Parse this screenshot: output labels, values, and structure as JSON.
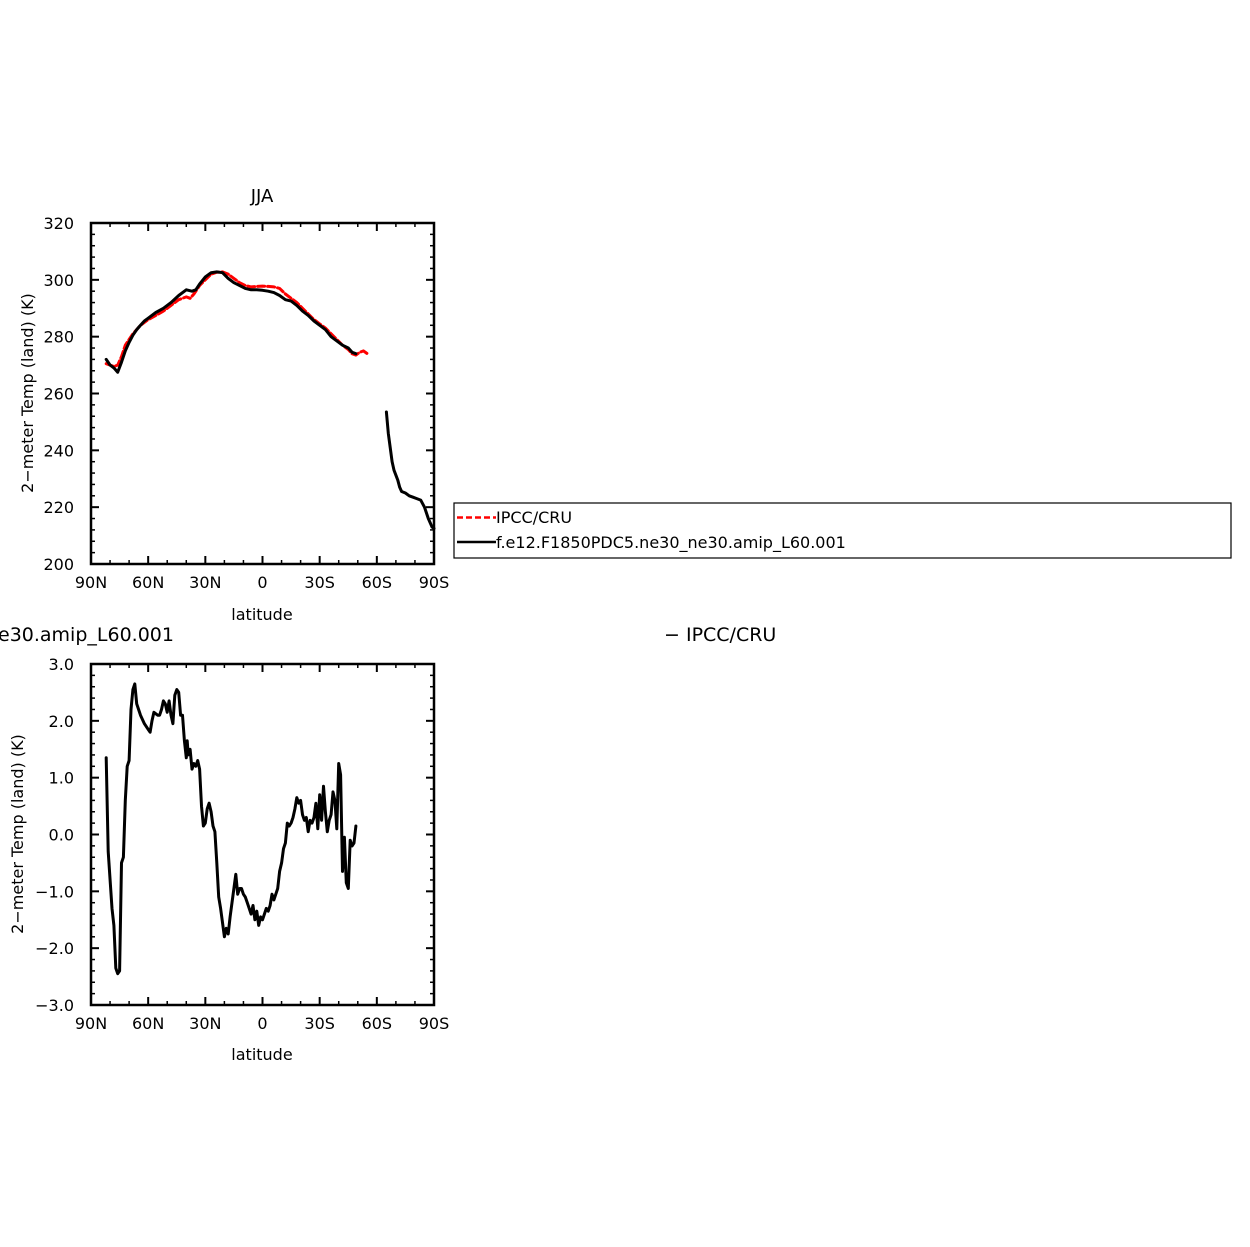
{
  "chart_data": [
    {
      "type": "line",
      "title": "JJA",
      "xlabel": "latitude",
      "ylabel": "2−meter Temp (land) (K)",
      "xlim": [
        90,
        -90
      ],
      "ylim": [
        200,
        320
      ],
      "x_ticks": [
        90,
        60,
        30,
        0,
        -30,
        -60,
        -90
      ],
      "x_tick_labels": [
        "90N",
        "60N",
        "30N",
        "0",
        "30S",
        "60S",
        "90S"
      ],
      "y_ticks": [
        200,
        220,
        240,
        260,
        280,
        300,
        320
      ],
      "y_tick_labels": [
        "200",
        "220",
        "240",
        "260",
        "280",
        "300",
        "320"
      ],
      "legend_position": "right",
      "series": [
        {
          "name": "IPCC/CRU",
          "color": "#ff0000",
          "dash": true,
          "points": [
            [
              82,
              270.5
            ],
            [
              80,
              270
            ],
            [
              78,
              269.5
            ],
            [
              76,
              270
            ],
            [
              74,
              273
            ],
            [
              72,
              277
            ],
            [
              70,
              279
            ],
            [
              68,
              281
            ],
            [
              66,
              282.5
            ],
            [
              64,
              284
            ],
            [
              60,
              286
            ],
            [
              56,
              287.5
            ],
            [
              52,
              289
            ],
            [
              48,
              291
            ],
            [
              44,
              293
            ],
            [
              40,
              294
            ],
            [
              38,
              293.5
            ],
            [
              36,
              295
            ],
            [
              33,
              298
            ],
            [
              30,
              300
            ],
            [
              27,
              302
            ],
            [
              24,
              302.7
            ],
            [
              21,
              302.8
            ],
            [
              18,
              302
            ],
            [
              15,
              300.5
            ],
            [
              12,
              299
            ],
            [
              9,
              298
            ],
            [
              6,
              297.5
            ],
            [
              3,
              297.7
            ],
            [
              0,
              297.8
            ],
            [
              -3,
              297.7
            ],
            [
              -6,
              297.5
            ],
            [
              -9,
              297
            ],
            [
              -12,
              295
            ],
            [
              -15,
              293.5
            ],
            [
              -18,
              292
            ],
            [
              -21,
              290
            ],
            [
              -24,
              288
            ],
            [
              -27,
              286
            ],
            [
              -30,
              284.5
            ],
            [
              -33,
              283
            ],
            [
              -36,
              281
            ],
            [
              -39,
              279
            ],
            [
              -42,
              277
            ],
            [
              -45,
              275.5
            ],
            [
              -47,
              274
            ],
            [
              -49,
              273.5
            ],
            [
              -51,
              274.5
            ],
            [
              -53,
              275
            ],
            [
              -55,
              274
            ]
          ]
        },
        {
          "name": "f.e12.F1850PDC5.ne30_ne30.amip_L60.001",
          "color": "#000000",
          "dash": false,
          "segments": [
            [
              [
                82,
                272
              ],
              [
                80,
                270
              ],
              [
                78,
                269
              ],
              [
                76,
                267.5
              ],
              [
                74,
                271
              ],
              [
                72,
                275
              ],
              [
                70,
                278
              ],
              [
                68,
                280.5
              ],
              [
                66,
                282.5
              ],
              [
                64,
                284
              ],
              [
                62,
                285.5
              ],
              [
                60,
                286.5
              ],
              [
                56,
                288.5
              ],
              [
                52,
                290
              ],
              [
                48,
                292
              ],
              [
                44,
                294.5
              ],
              [
                40,
                296.5
              ],
              [
                37,
                296
              ],
              [
                35,
                296.5
              ],
              [
                33,
                298.5
              ],
              [
                30,
                301
              ],
              [
                27,
                302.5
              ],
              [
                24,
                302.8
              ],
              [
                21,
                302.5
              ],
              [
                18,
                300.5
              ],
              [
                15,
                299
              ],
              [
                12,
                298
              ],
              [
                9,
                297
              ],
              [
                6,
                296.5
              ],
              [
                3,
                296.5
              ],
              [
                0,
                296.3
              ],
              [
                -3,
                296
              ],
              [
                -6,
                295.5
              ],
              [
                -9,
                294.5
              ],
              [
                -12,
                293
              ],
              [
                -15,
                292.5
              ],
              [
                -18,
                291
              ],
              [
                -21,
                289
              ],
              [
                -24,
                287.5
              ],
              [
                -27,
                285.5
              ],
              [
                -30,
                284
              ],
              [
                -33,
                282.5
              ],
              [
                -36,
                280
              ],
              [
                -39,
                278.5
              ],
              [
                -42,
                277
              ],
              [
                -45,
                276
              ],
              [
                -47,
                274.5
              ],
              [
                -49,
                274
              ]
            ],
            [
              [
                -65,
                253.5
              ],
              [
                -66,
                246
              ],
              [
                -67,
                241
              ],
              [
                -68,
                236
              ],
              [
                -69,
                233
              ],
              [
                -71,
                229.5
              ],
              [
                -72,
                227
              ],
              [
                -73,
                225.5
              ],
              [
                -75,
                225
              ],
              [
                -77,
                224
              ],
              [
                -79,
                223.5
              ],
              [
                -81,
                223
              ],
              [
                -83,
                222.5
              ],
              [
                -85,
                220
              ],
              [
                -87,
                216
              ],
              [
                -89,
                213
              ],
              [
                -90,
                212.5
              ]
            ]
          ]
        }
      ]
    },
    {
      "type": "line",
      "title": "e30.amip_L60.001",
      "title_right": "− IPCC/CRU",
      "xlabel": "latitude",
      "ylabel": "2−meter Temp (land) (K)",
      "xlim": [
        90,
        -90
      ],
      "ylim": [
        -3,
        3
      ],
      "x_ticks": [
        90,
        60,
        30,
        0,
        -30,
        -60,
        -90
      ],
      "x_tick_labels": [
        "90N",
        "60N",
        "30N",
        "0",
        "30S",
        "60S",
        "90S"
      ],
      "y_ticks": [
        -3,
        -2,
        -1,
        0,
        1,
        2,
        3
      ],
      "y_tick_labels": [
        "−3.0",
        "−2.0",
        "−1.0",
        "0.0",
        "1.0",
        "2.0",
        "3.0"
      ],
      "series": [
        {
          "color": "#000000",
          "dash": false,
          "points": [
            [
              82,
              1.35
            ],
            [
              81,
              -0.3
            ],
            [
              80,
              -0.8
            ],
            [
              79,
              -1.3
            ],
            [
              78,
              -1.6
            ],
            [
              77,
              -2.35
            ],
            [
              76,
              -2.45
            ],
            [
              75,
              -2.4
            ],
            [
              74,
              -0.5
            ],
            [
              73,
              -0.4
            ],
            [
              72,
              0.6
            ],
            [
              71,
              1.2
            ],
            [
              70,
              1.3
            ],
            [
              69,
              2.2
            ],
            [
              68,
              2.55
            ],
            [
              67,
              2.65
            ],
            [
              66,
              2.3
            ],
            [
              65,
              2.2
            ],
            [
              64,
              2.1
            ],
            [
              62,
              1.95
            ],
            [
              60,
              1.85
            ],
            [
              59,
              1.8
            ],
            [
              58,
              2.0
            ],
            [
              57,
              2.15
            ],
            [
              55,
              2.1
            ],
            [
              54,
              2.1
            ],
            [
              53,
              2.2
            ],
            [
              52,
              2.35
            ],
            [
              51,
              2.3
            ],
            [
              50,
              2.15
            ],
            [
              49,
              2.35
            ],
            [
              48,
              2.1
            ],
            [
              47,
              1.95
            ],
            [
              46,
              2.45
            ],
            [
              45,
              2.55
            ],
            [
              44,
              2.5
            ],
            [
              43,
              2.1
            ],
            [
              42,
              2.1
            ],
            [
              41,
              1.65
            ],
            [
              40,
              1.35
            ],
            [
              39.5,
              1.65
            ],
            [
              39,
              1.4
            ],
            [
              38,
              1.5
            ],
            [
              37,
              1.15
            ],
            [
              36,
              1.25
            ],
            [
              35,
              1.2
            ],
            [
              34,
              1.3
            ],
            [
              33,
              1.15
            ],
            [
              32,
              0.5
            ],
            [
              31,
              0.15
            ],
            [
              30,
              0.2
            ],
            [
              29,
              0.45
            ],
            [
              28,
              0.55
            ],
            [
              27,
              0.4
            ],
            [
              26,
              0.15
            ],
            [
              25,
              0.05
            ],
            [
              24,
              -0.5
            ],
            [
              23,
              -1.1
            ],
            [
              22,
              -1.3
            ],
            [
              21,
              -1.55
            ],
            [
              20,
              -1.8
            ],
            [
              19,
              -1.65
            ],
            [
              18,
              -1.75
            ],
            [
              17,
              -1.45
            ],
            [
              16,
              -1.2
            ],
            [
              15,
              -0.95
            ],
            [
              14,
              -0.7
            ],
            [
              13,
              -1.05
            ],
            [
              12,
              -0.95
            ],
            [
              11,
              -0.95
            ],
            [
              10,
              -1.05
            ],
            [
              9,
              -1.1
            ],
            [
              8,
              -1.2
            ],
            [
              7,
              -1.3
            ],
            [
              6,
              -1.4
            ],
            [
              5,
              -1.25
            ],
            [
              4,
              -1.5
            ],
            [
              3,
              -1.35
            ],
            [
              2,
              -1.6
            ],
            [
              1,
              -1.45
            ],
            [
              0,
              -1.5
            ],
            [
              -1,
              -1.4
            ],
            [
              -2,
              -1.3
            ],
            [
              -3,
              -1.35
            ],
            [
              -4,
              -1.25
            ],
            [
              -5,
              -1.05
            ],
            [
              -6,
              -1.15
            ],
            [
              -7,
              -1.05
            ],
            [
              -8,
              -0.95
            ],
            [
              -9,
              -0.65
            ],
            [
              -10,
              -0.5
            ],
            [
              -11,
              -0.25
            ],
            [
              -12,
              -0.15
            ],
            [
              -13,
              0.2
            ],
            [
              -14,
              0.15
            ],
            [
              -15,
              0.2
            ],
            [
              -16,
              0.3
            ],
            [
              -17,
              0.45
            ],
            [
              -18,
              0.65
            ],
            [
              -19,
              0.55
            ],
            [
              -20,
              0.6
            ],
            [
              -21,
              0.35
            ],
            [
              -22,
              0.25
            ],
            [
              -23,
              0.3
            ],
            [
              -24,
              0.05
            ],
            [
              -25,
              0.25
            ],
            [
              -26,
              0.2
            ],
            [
              -27,
              0.3
            ],
            [
              -28,
              0.55
            ],
            [
              -29,
              0.1
            ],
            [
              -30,
              0.7
            ],
            [
              -31,
              0.25
            ],
            [
              -32,
              0.85
            ],
            [
              -33,
              0.4
            ],
            [
              -34,
              0.05
            ],
            [
              -35,
              0.25
            ],
            [
              -36,
              0.35
            ],
            [
              -37,
              0.75
            ],
            [
              -38,
              0.6
            ],
            [
              -39,
              0.1
            ],
            [
              -40,
              1.25
            ],
            [
              -41,
              1.05
            ],
            [
              -42,
              -0.65
            ],
            [
              -43,
              -0.05
            ],
            [
              -44,
              -0.85
            ],
            [
              -45,
              -0.95
            ],
            [
              -46,
              -0.1
            ],
            [
              -47,
              -0.2
            ],
            [
              -48,
              -0.15
            ],
            [
              -49,
              0.15
            ]
          ]
        }
      ]
    }
  ]
}
